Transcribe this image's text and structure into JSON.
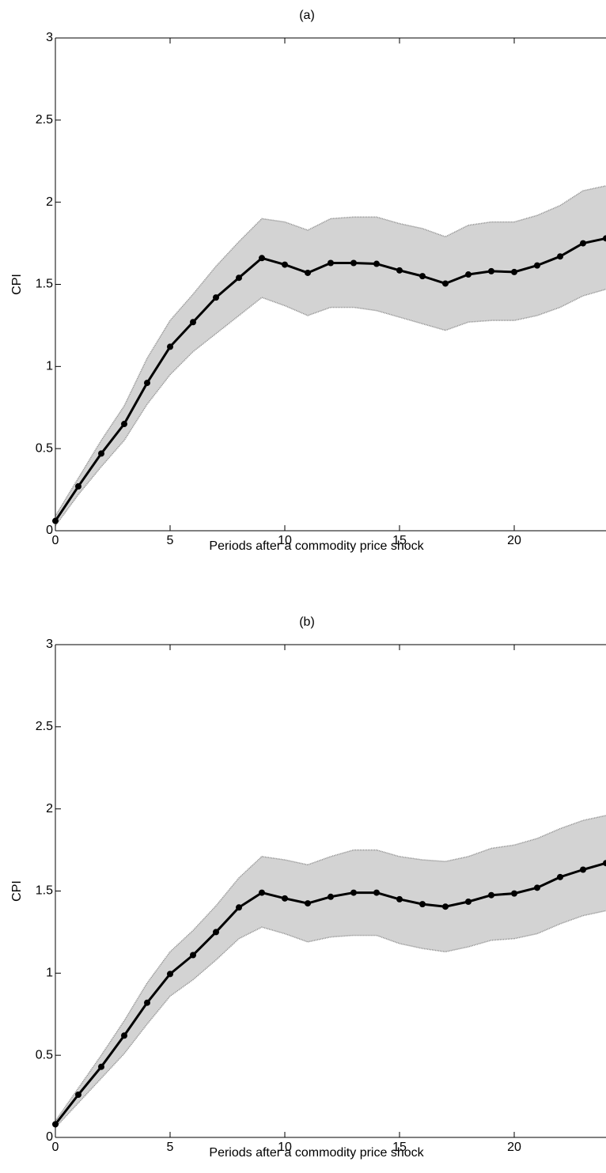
{
  "chart_data": [
    {
      "type": "line",
      "title": "(a)",
      "x_label": "Periods after a commodity price shock",
      "y_label": "CPI",
      "x": [
        0,
        1,
        2,
        3,
        4,
        5,
        6,
        7,
        8,
        9,
        10,
        11,
        12,
        13,
        14,
        15,
        16,
        17,
        18,
        19,
        20,
        21,
        22,
        23,
        24
      ],
      "series": [
        {
          "color": "#000000",
          "values": [
            0.06,
            0.27,
            0.47,
            0.65,
            0.9,
            1.12,
            1.27,
            1.42,
            1.54,
            1.66,
            1.62,
            1.57,
            1.63,
            1.63,
            1.625,
            1.585,
            1.55,
            1.505,
            1.56,
            1.58,
            1.575,
            1.615,
            1.67,
            1.75,
            1.78
          ]
        }
      ],
      "band": {
        "color": "#d3d3d3",
        "upper": [
          0.09,
          0.32,
          0.55,
          0.76,
          1.05,
          1.28,
          1.44,
          1.61,
          1.76,
          1.9,
          1.88,
          1.83,
          1.9,
          1.91,
          1.91,
          1.87,
          1.84,
          1.79,
          1.86,
          1.88,
          1.88,
          1.92,
          1.98,
          2.07,
          2.1
        ],
        "lower": [
          0.03,
          0.22,
          0.39,
          0.55,
          0.77,
          0.95,
          1.09,
          1.2,
          1.31,
          1.42,
          1.37,
          1.31,
          1.36,
          1.36,
          1.34,
          1.3,
          1.26,
          1.22,
          1.27,
          1.28,
          1.28,
          1.31,
          1.36,
          1.43,
          1.47
        ]
      },
      "xlim": [
        0,
        24
      ],
      "ylim": [
        0,
        3
      ],
      "xticks": [
        0,
        5,
        10,
        15,
        20
      ],
      "yticks": [
        0,
        0.5,
        1,
        1.5,
        2,
        2.5,
        3
      ]
    },
    {
      "type": "line",
      "title": "(b)",
      "x_label": "Periods after a commodity price shock",
      "y_label": "CPI",
      "x": [
        0,
        1,
        2,
        3,
        4,
        5,
        6,
        7,
        8,
        9,
        10,
        11,
        12,
        13,
        14,
        15,
        16,
        17,
        18,
        19,
        20,
        21,
        22,
        23,
        24
      ],
      "series": [
        {
          "color": "#000000",
          "values": [
            0.08,
            0.26,
            0.43,
            0.62,
            0.82,
            0.995,
            1.11,
            1.25,
            1.4,
            1.49,
            1.455,
            1.425,
            1.465,
            1.49,
            1.49,
            1.45,
            1.42,
            1.405,
            1.435,
            1.475,
            1.485,
            1.52,
            1.585,
            1.63,
            1.67
          ]
        }
      ],
      "band": {
        "color": "#d3d3d3",
        "upper": [
          0.1,
          0.3,
          0.5,
          0.71,
          0.94,
          1.13,
          1.26,
          1.41,
          1.58,
          1.71,
          1.69,
          1.66,
          1.71,
          1.75,
          1.75,
          1.71,
          1.69,
          1.68,
          1.71,
          1.76,
          1.78,
          1.82,
          1.88,
          1.93,
          1.96
        ],
        "lower": [
          0.06,
          0.21,
          0.36,
          0.51,
          0.69,
          0.86,
          0.96,
          1.08,
          1.21,
          1.28,
          1.24,
          1.19,
          1.22,
          1.23,
          1.23,
          1.18,
          1.15,
          1.13,
          1.16,
          1.2,
          1.21,
          1.24,
          1.3,
          1.35,
          1.38
        ]
      },
      "xlim": [
        0,
        24
      ],
      "ylim": [
        0,
        3
      ],
      "xticks": [
        0,
        5,
        10,
        15,
        20
      ],
      "yticks": [
        0,
        0.5,
        1,
        1.5,
        2,
        2.5,
        3
      ]
    }
  ]
}
